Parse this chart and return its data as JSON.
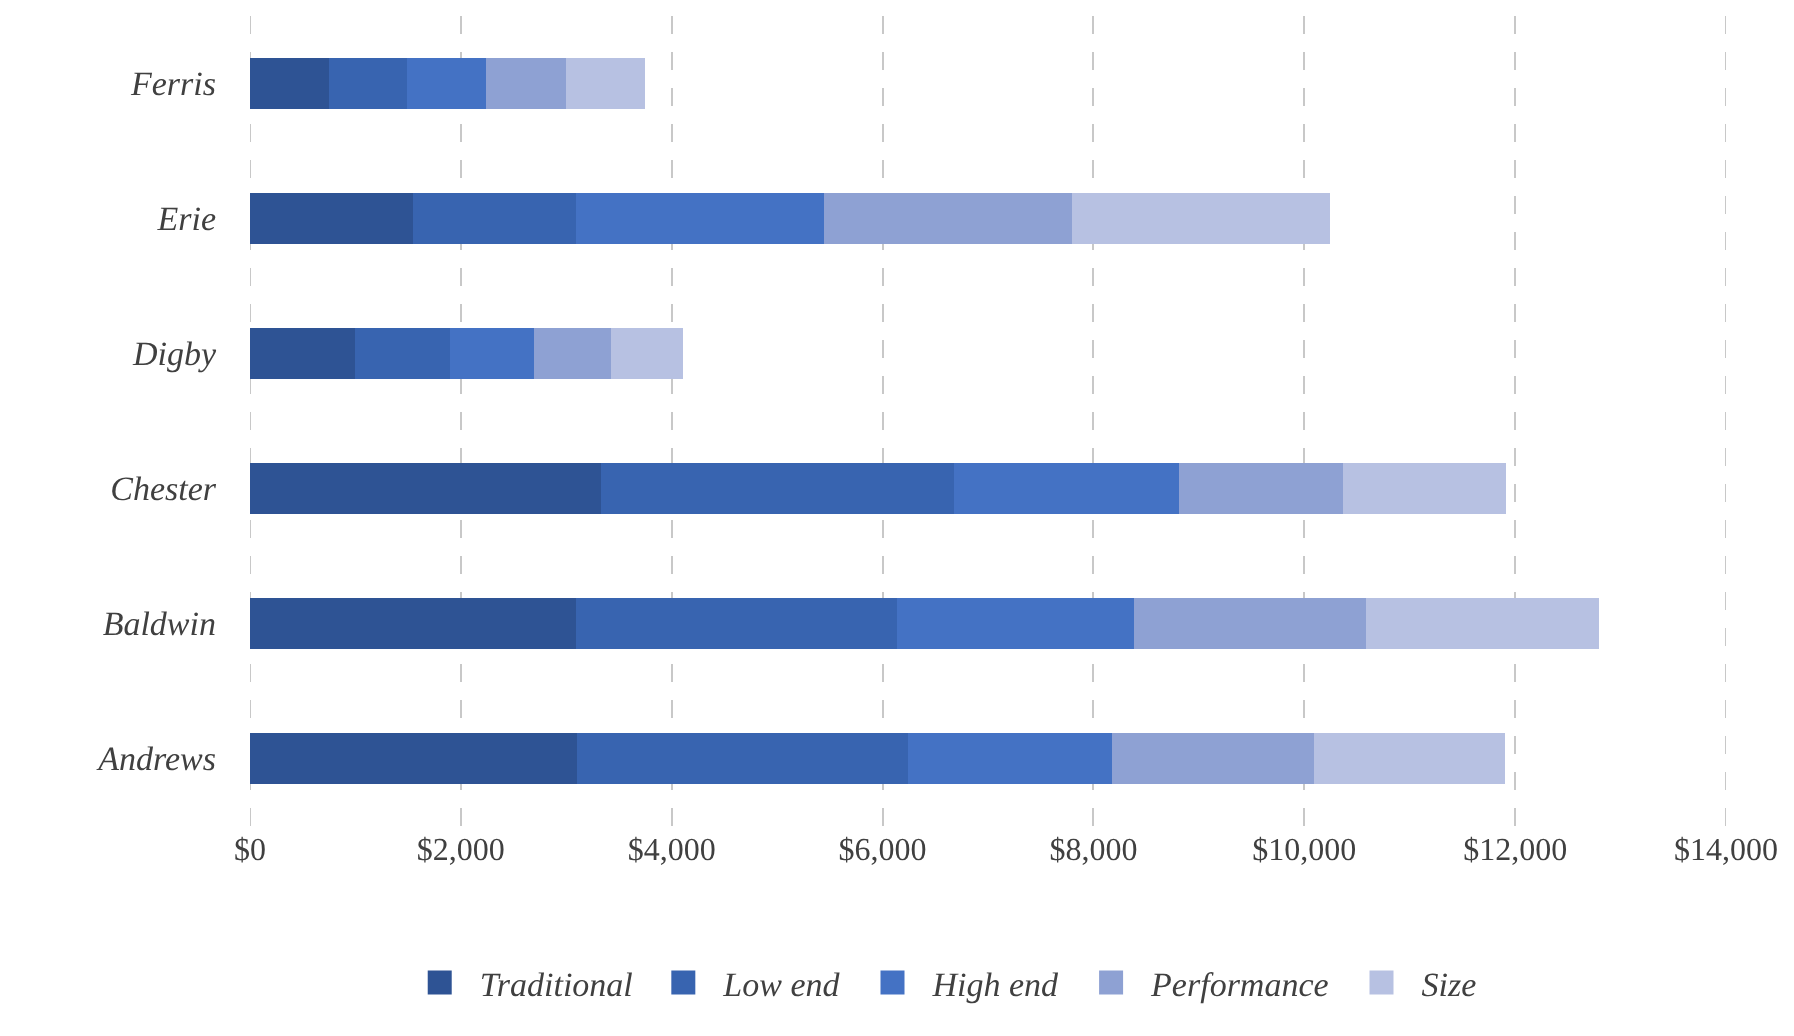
{
  "chart_data": {
    "type": "bar",
    "orientation": "horizontal",
    "stacked": true,
    "categories": [
      "Ferris",
      "Erie",
      "Digby",
      "Chester",
      "Baldwin",
      "Andrews"
    ],
    "series": [
      {
        "name": "Traditional",
        "color": "#2e5394",
        "values": [
          750,
          1550,
          1000,
          3330,
          3090,
          3100
        ]
      },
      {
        "name": "Low end",
        "color": "#3864b0",
        "values": [
          740,
          1540,
          900,
          3350,
          3050,
          3140
        ]
      },
      {
        "name": "High end",
        "color": "#4472c4",
        "values": [
          750,
          2350,
          790,
          2130,
          2240,
          1940
        ]
      },
      {
        "name": "Performance",
        "color": "#8ea1d3",
        "values": [
          760,
          2360,
          730,
          1560,
          2210,
          1910
        ]
      },
      {
        "name": "Size",
        "color": "#b7c1e2",
        "values": [
          750,
          2440,
          690,
          1540,
          2210,
          1810
        ]
      }
    ],
    "xlim": [
      0,
      14000
    ],
    "xticks": [
      {
        "value": 0,
        "label": "$0"
      },
      {
        "value": 2000,
        "label": "$2,000"
      },
      {
        "value": 4000,
        "label": "$4,000"
      },
      {
        "value": 6000,
        "label": "$6,000"
      },
      {
        "value": 8000,
        "label": "$8,000"
      },
      {
        "value": 10000,
        "label": "$10,000"
      },
      {
        "value": 12000,
        "label": "$12,000"
      },
      {
        "value": 14000,
        "label": "$14,000"
      }
    ],
    "grid": "x",
    "legend": "bottom"
  }
}
